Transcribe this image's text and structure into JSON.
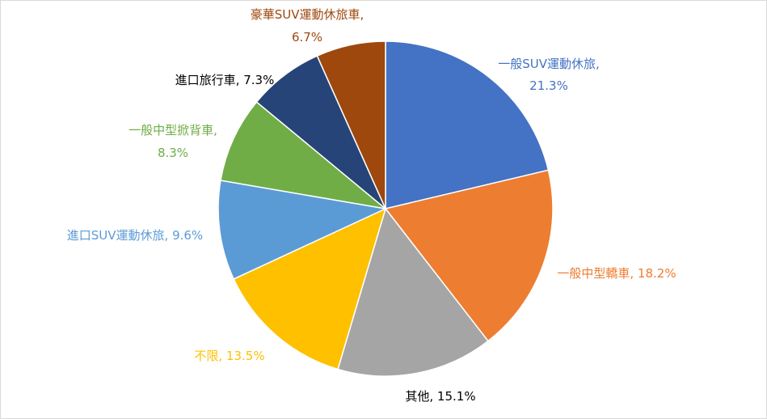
{
  "chart_data": {
    "type": "pie",
    "title": "",
    "start_angle_deg": 0,
    "direction": "clockwise",
    "slices": [
      {
        "label": "一般SUV運動休旅,",
        "label_line2": "21.3%",
        "value": 21.3,
        "color": "#4472C4"
      },
      {
        "label": "一般中型轎車, 18.2%",
        "label_line2": "",
        "value": 18.2,
        "color": "#ED7D31"
      },
      {
        "label": "其他, 15.1%",
        "label_line2": "",
        "value": 15.1,
        "color": "#A5A5A5"
      },
      {
        "label": "不限, 13.5%",
        "label_line2": "",
        "value": 13.5,
        "color": "#FFC000"
      },
      {
        "label": "進口SUV運動休旅, 9.6%",
        "label_line2": "",
        "value": 9.6,
        "color": "#5B9BD5"
      },
      {
        "label": "一般中型掀背車,",
        "label_line2": "8.3%",
        "value": 8.3,
        "color": "#70AD47"
      },
      {
        "label": "進口旅行車, 7.3%",
        "label_line2": "",
        "value": 7.3,
        "color": "#264478"
      },
      {
        "label": "豪華SUV運動休旅車,",
        "label_line2": "6.7%",
        "value": 6.7,
        "color": "#9E480E"
      }
    ],
    "label_colors": [
      "#4472C4",
      "#ED7D31",
      "#000000",
      "#FFC000",
      "#5B9BD5",
      "#70AD47",
      "#000000",
      "#9E480E"
    ],
    "legend": "none"
  }
}
